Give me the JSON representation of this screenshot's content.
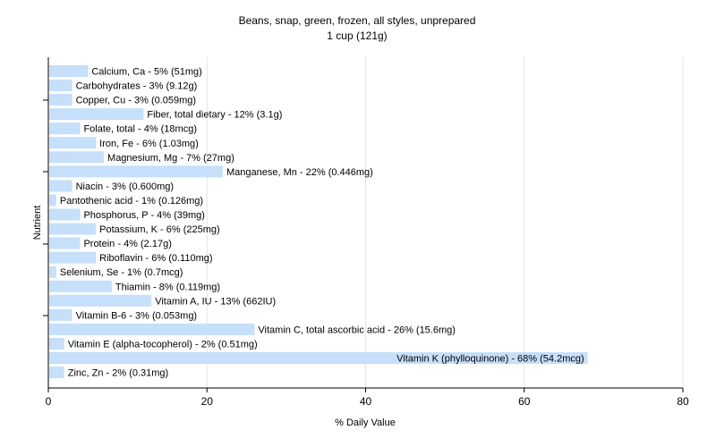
{
  "chart_data": {
    "type": "bar",
    "orientation": "horizontal",
    "title": "Beans, snap, green, frozen, all styles, unprepared",
    "subtitle": "1 cup (121g)",
    "xlabel": "% Daily Value",
    "ylabel": "Nutrient",
    "xlim": [
      0,
      80
    ],
    "xticks": [
      "0",
      "20",
      "40",
      "60",
      "80"
    ],
    "grid": true,
    "bar_color": "#c6dffa",
    "categories": [
      "Calcium, Ca",
      "Carbohydrates",
      "Copper, Cu",
      "Fiber, total dietary",
      "Folate, total",
      "Iron, Fe",
      "Magnesium, Mg",
      "Manganese, Mn",
      "Niacin",
      "Pantothenic acid",
      "Phosphorus, P",
      "Potassium, K",
      "Protein",
      "Riboflavin",
      "Selenium, Se",
      "Thiamin",
      "Vitamin A, IU",
      "Vitamin B-6",
      "Vitamin C, total ascorbic acid",
      "Vitamin E (alpha-tocopherol)",
      "Vitamin K (phylloquinone)",
      "Zinc, Zn"
    ],
    "values": [
      5,
      3,
      3,
      12,
      4,
      6,
      7,
      22,
      3,
      1,
      4,
      6,
      4,
      6,
      1,
      8,
      13,
      3,
      26,
      2,
      68,
      2
    ],
    "labels": [
      "Calcium, Ca - 5% (51mg)",
      "Carbohydrates - 3% (9.12g)",
      "Copper, Cu - 3% (0.059mg)",
      "Fiber, total dietary - 12% (3.1g)",
      "Folate, total - 4% (18mcg)",
      "Iron, Fe - 6% (1.03mg)",
      "Magnesium, Mg - 7% (27mg)",
      "Manganese, Mn - 22% (0.446mg)",
      "Niacin - 3% (0.600mg)",
      "Pantothenic acid - 1% (0.126mg)",
      "Phosphorus, P - 4% (39mg)",
      "Potassium, K - 6% (225mg)",
      "Protein - 4% (2.17g)",
      "Riboflavin - 6% (0.110mg)",
      "Selenium, Se - 1% (0.7mcg)",
      "Thiamin - 8% (0.119mg)",
      "Vitamin A, IU - 13% (662IU)",
      "Vitamin B-6 - 3% (0.053mg)",
      "Vitamin C, total ascorbic acid - 26% (15.6mg)",
      "Vitamin E (alpha-tocopherol) - 2% (0.51mg)",
      "Vitamin K (phylloquinone) - 68% (54.2mcg)",
      "Zinc, Zn - 2% (0.31mg)"
    ]
  }
}
